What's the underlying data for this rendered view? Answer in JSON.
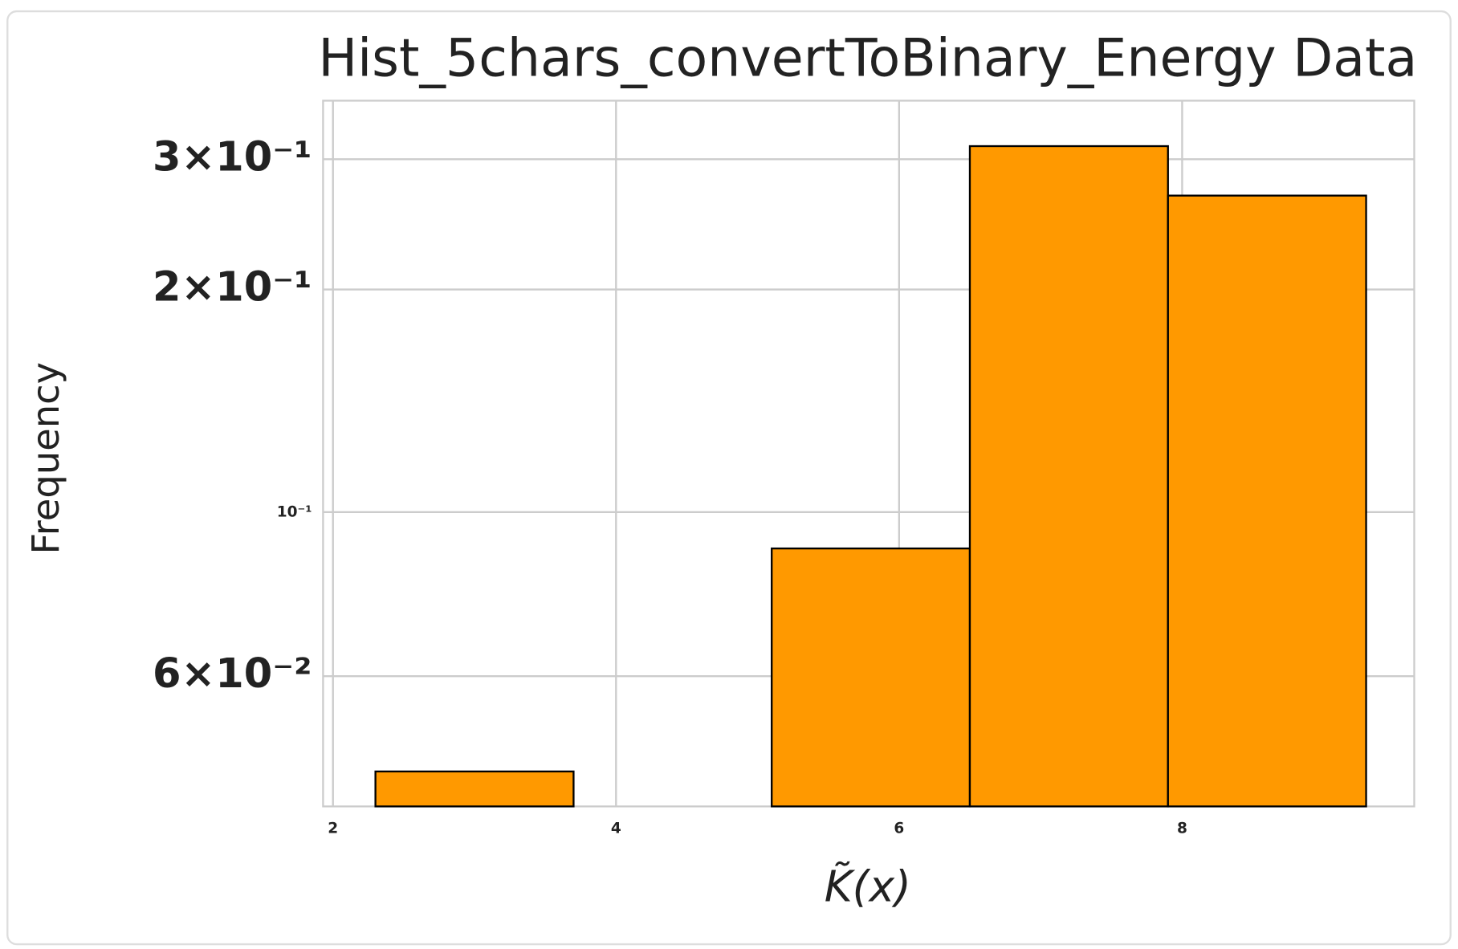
{
  "chart_data": {
    "type": "histogram",
    "title": "Hist_5chars_convertToBinary_Energy Data",
    "xlabel": "K̃(x)",
    "ylabel": "Frequency",
    "bins": [
      2.3,
      3.7,
      5.1,
      6.5,
      7.9,
      9.3
    ],
    "values": [
      0.0446,
      0,
      0.0893,
      0.3125,
      0.2679
    ],
    "color": "#ff9900",
    "xlim": [
      1.93,
      9.64
    ],
    "xticks": [
      2,
      4,
      6,
      8
    ],
    "ylim": [
      0.04,
      0.36
    ],
    "ylog": true,
    "yticks": [
      {
        "value": 0.06,
        "label": "6×10⁻²"
      },
      {
        "value": 0.1,
        "label": "10⁻¹"
      },
      {
        "value": 0.2,
        "label": "2×10⁻¹"
      },
      {
        "value": 0.3,
        "label": "3×10⁻¹"
      }
    ],
    "grid": true
  }
}
